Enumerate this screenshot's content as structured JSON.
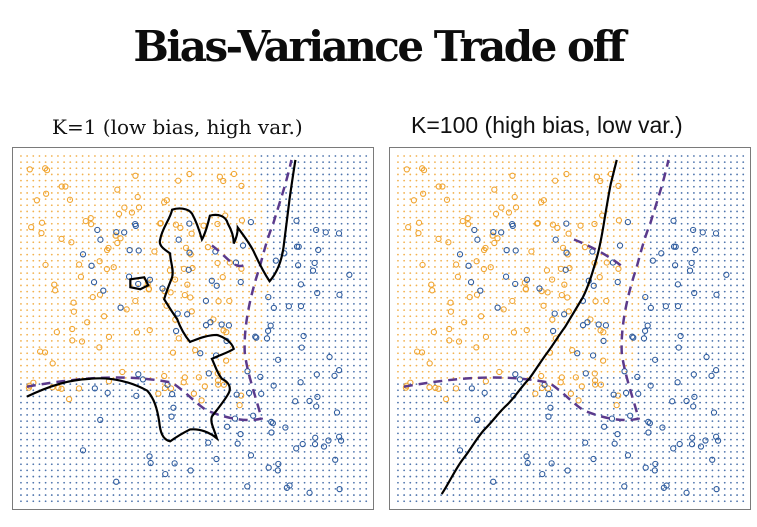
{
  "title": "Bias-Variance Trade off",
  "colors": {
    "class_orange": "#f0a531",
    "class_blue": "#2f5c9e",
    "knn_boundary": "#000000",
    "bayes_boundary": "#5b3a8c"
  },
  "panels": [
    {
      "title": "K=1 (low bias, high var.)"
    },
    {
      "title": "K=100 (high bias, low var.)"
    }
  ]
}
